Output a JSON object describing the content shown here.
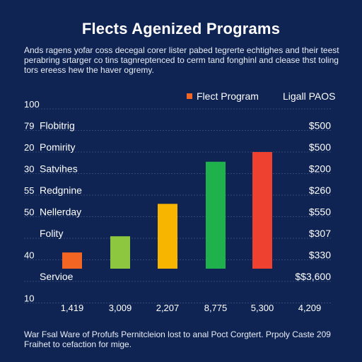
{
  "chart_data": {
    "type": "bar",
    "title": "Flects Agenized Programs",
    "subtitle": "Ands ragens yofar coss decegal corer lister pabed tegrerte echtighes and their teest perabring srtarger co tins tagnreptenced to cerm tand fonghinl and clease thst toling tors ereess hew the haver ogremy.",
    "legend": [
      {
        "label": "Flect Program",
        "color": "#f26522"
      },
      {
        "label": "Ligall PAOS",
        "color": ""
      }
    ],
    "y_tick_labels": [
      "100",
      "79",
      "20",
      "30",
      "55",
      "50",
      "",
      "40",
      "",
      "10"
    ],
    "row_labels": [
      "",
      "Flobitrig",
      "Pomirity",
      "Satvihes",
      "Redgnine",
      "Nellerday",
      "Folity",
      "",
      "Servioe",
      ""
    ],
    "right_labels": [
      "",
      "$500",
      "$500",
      "$200",
      "$260",
      "$550",
      "$307",
      "$330",
      "$$3,600",
      ""
    ],
    "categories": [
      "1,419",
      "3,009",
      "2,207",
      "8,775",
      "5,300",
      "4,209"
    ],
    "values": [
      5,
      10,
      20,
      33,
      36,
      0
    ],
    "colors": [
      "#f26522",
      "#8dc63f",
      "#f7b500",
      "#1fb14c",
      "#ef4130",
      ""
    ],
    "ylim": [
      0,
      48
    ],
    "caption": "War Fsal Ware of Profufs Pernitcleion lost to anal Poct Corgtert. Prpoly Caste 209 Fraihet to cefaction for mige."
  }
}
